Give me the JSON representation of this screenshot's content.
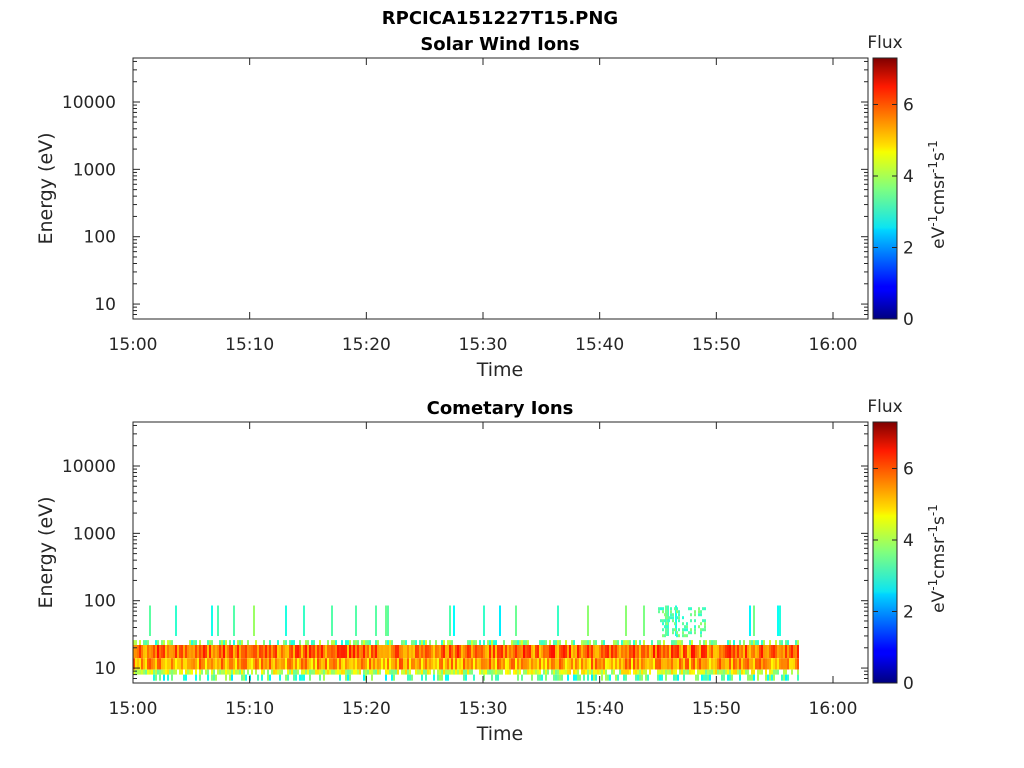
{
  "figure_title": "RPCICA151227T15.PNG",
  "chart_data": [
    {
      "type": "heatmap",
      "title": "Solar Wind Ions",
      "xlabel": "Time",
      "ylabel": "Energy (eV)",
      "x_ticks": [
        "15:00",
        "15:10",
        "15:20",
        "15:30",
        "15:40",
        "15:50",
        "16:00"
      ],
      "x_range": [
        "15:00",
        "16:03"
      ],
      "y_scale": "log",
      "y_ticks": [
        10,
        100,
        1000,
        10000
      ],
      "y_range": [
        6,
        45000
      ],
      "colorbar": {
        "label": "Flux",
        "unit_text": "eV-1cm-2sr-1s-1",
        "ticks": [
          0,
          2,
          4,
          6
        ],
        "range": [
          0,
          7.3
        ],
        "colormap": "jet"
      },
      "grid": false,
      "bands": []
    },
    {
      "type": "heatmap",
      "title": "Cometary Ions",
      "xlabel": "Time",
      "ylabel": "Energy (eV)",
      "x_ticks": [
        "15:00",
        "15:10",
        "15:20",
        "15:30",
        "15:40",
        "15:50",
        "16:00"
      ],
      "x_range": [
        "15:00",
        "16:03"
      ],
      "y_scale": "log",
      "y_ticks": [
        10,
        100,
        1000,
        10000
      ],
      "y_range": [
        6,
        45000
      ],
      "colorbar": {
        "label": "Flux",
        "unit_text": "eV-1cm-2sr-1s-1",
        "ticks": [
          0,
          2,
          4,
          6
        ],
        "range": [
          0,
          7.3
        ],
        "colormap": "jet"
      },
      "grid": false,
      "data_time_range": [
        "15:00",
        "15:57"
      ],
      "bands": [
        {
          "e_min": 14,
          "e_max": 22,
          "flux": 5.6,
          "density": 1.0
        },
        {
          "e_min": 9.5,
          "e_max": 14,
          "flux": 5.2,
          "density": 1.0
        },
        {
          "e_min": 8,
          "e_max": 9.5,
          "flux": 4.2,
          "density": 0.85
        },
        {
          "e_min": 22,
          "e_max": 26,
          "flux": 3.6,
          "density": 0.55
        },
        {
          "e_min": 6.5,
          "e_max": 8,
          "flux": 3.3,
          "density": 0.4
        },
        {
          "e_min": 30,
          "e_max": 85,
          "flux": 3.2,
          "density": 0.05
        }
      ],
      "features": [
        {
          "t_start": "15:45",
          "t_end": "15:49",
          "e_min": 30,
          "e_max": 80,
          "flux": 3.4,
          "density": 0.45
        }
      ]
    }
  ]
}
